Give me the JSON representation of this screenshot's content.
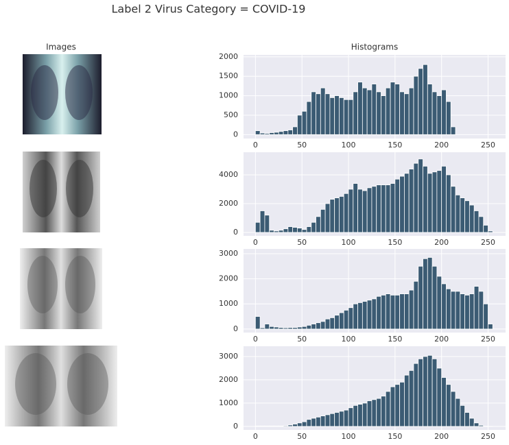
{
  "title": "Label 2 Virus Category = COVID-19",
  "images_title": "Images",
  "chart_data": [
    {
      "type": "histogram",
      "title": "Histograms",
      "color": "#3b5b73",
      "grid": true,
      "bins": [
        0,
        5,
        10,
        15,
        20,
        25,
        30,
        35,
        40,
        45,
        50,
        55,
        60,
        65,
        70,
        75,
        80,
        85,
        90,
        95,
        100,
        105,
        110,
        115,
        120,
        125,
        130,
        135,
        140,
        145,
        150,
        155,
        160,
        165,
        170,
        175,
        180,
        185,
        190,
        195,
        200,
        205,
        210,
        215,
        220,
        225,
        230,
        235,
        240,
        245,
        250,
        255
      ],
      "values": [
        100,
        40,
        30,
        50,
        60,
        80,
        100,
        120,
        200,
        500,
        600,
        850,
        1100,
        1050,
        1200,
        1050,
        950,
        1000,
        950,
        900,
        900,
        1100,
        1350,
        1200,
        1150,
        1300,
        1100,
        1000,
        1200,
        1350,
        1300,
        1100,
        1050,
        1200,
        1500,
        1700,
        1800,
        1300,
        1100,
        1000,
        1150,
        850,
        200,
        0,
        0,
        0,
        0,
        0,
        0,
        0,
        0
      ],
      "xlim": [
        -12.8,
        268.8
      ],
      "xticks": [
        0,
        50,
        100,
        150,
        200,
        250
      ],
      "ylim": [
        -100,
        2050
      ],
      "yticks": [
        0,
        500,
        1000,
        1500,
        2000
      ]
    },
    {
      "type": "histogram",
      "color": "#3b5b73",
      "grid": true,
      "bins": [
        0,
        5,
        10,
        15,
        20,
        25,
        30,
        35,
        40,
        45,
        50,
        55,
        60,
        65,
        70,
        75,
        80,
        85,
        90,
        95,
        100,
        105,
        110,
        115,
        120,
        125,
        130,
        135,
        140,
        145,
        150,
        155,
        160,
        165,
        170,
        175,
        180,
        185,
        190,
        195,
        200,
        205,
        210,
        215,
        220,
        225,
        230,
        235,
        240,
        245,
        250,
        255
      ],
      "values": [
        700,
        1500,
        1200,
        150,
        100,
        150,
        250,
        400,
        350,
        300,
        200,
        400,
        700,
        1100,
        1600,
        2000,
        2300,
        2400,
        2500,
        2700,
        3000,
        3400,
        3000,
        2900,
        3100,
        3200,
        3300,
        3300,
        3300,
        3400,
        3700,
        3900,
        4100,
        4400,
        4800,
        5100,
        4600,
        4100,
        4200,
        4300,
        4600,
        4000,
        3200,
        2600,
        2400,
        2200,
        1900,
        1500,
        1100,
        500,
        100
      ],
      "xlim": [
        -12.8,
        268.8
      ],
      "xticks": [
        0,
        50,
        100,
        150,
        200,
        250
      ],
      "ylim": [
        -240,
        5570
      ],
      "yticks": [
        0,
        2000,
        4000
      ]
    },
    {
      "type": "histogram",
      "color": "#3b5b73",
      "grid": true,
      "bins": [
        0,
        5,
        10,
        15,
        20,
        25,
        30,
        35,
        40,
        45,
        50,
        55,
        60,
        65,
        70,
        75,
        80,
        85,
        90,
        95,
        100,
        105,
        110,
        115,
        120,
        125,
        130,
        135,
        140,
        145,
        150,
        155,
        160,
        165,
        170,
        175,
        180,
        185,
        190,
        195,
        200,
        205,
        210,
        215,
        220,
        225,
        230,
        235,
        240,
        245,
        250,
        255
      ],
      "values": [
        500,
        50,
        200,
        100,
        80,
        60,
        50,
        60,
        60,
        80,
        100,
        150,
        200,
        250,
        300,
        400,
        450,
        550,
        650,
        750,
        850,
        1000,
        1050,
        1100,
        1150,
        1200,
        1300,
        1350,
        1400,
        1350,
        1350,
        1400,
        1400,
        1550,
        1900,
        2500,
        2800,
        2850,
        2500,
        2100,
        1800,
        1600,
        1500,
        1500,
        1400,
        1350,
        1400,
        1700,
        1500,
        1000,
        200
      ],
      "xlim": [
        -12.8,
        268.8
      ],
      "xticks": [
        0,
        50,
        100,
        150,
        200,
        250
      ],
      "ylim": [
        -140,
        3190
      ],
      "yticks": [
        0,
        1000,
        2000,
        3000
      ]
    },
    {
      "type": "histogram",
      "color": "#3b5b73",
      "grid": true,
      "bins": [
        0,
        5,
        10,
        15,
        20,
        25,
        30,
        35,
        40,
        45,
        50,
        55,
        60,
        65,
        70,
        75,
        80,
        85,
        90,
        95,
        100,
        105,
        110,
        115,
        120,
        125,
        130,
        135,
        140,
        145,
        150,
        155,
        160,
        165,
        170,
        175,
        180,
        185,
        190,
        195,
        200,
        205,
        210,
        215,
        220,
        225,
        230,
        235,
        240,
        245,
        250,
        255
      ],
      "values": [
        20,
        20,
        20,
        20,
        20,
        20,
        30,
        60,
        100,
        150,
        200,
        300,
        350,
        400,
        450,
        500,
        550,
        600,
        650,
        700,
        800,
        900,
        950,
        1000,
        1100,
        1150,
        1200,
        1300,
        1500,
        1700,
        1800,
        1900,
        2200,
        2400,
        2700,
        2900,
        3000,
        3050,
        2900,
        2500,
        2100,
        1800,
        1500,
        1200,
        900,
        600,
        350,
        150,
        50,
        10,
        5
      ],
      "xlim": [
        -12.8,
        268.8
      ],
      "xticks": [
        0,
        50,
        100,
        150,
        200,
        250
      ],
      "ylim": [
        -150,
        3440
      ],
      "yticks": [
        0,
        1000,
        2000,
        3000
      ]
    }
  ]
}
